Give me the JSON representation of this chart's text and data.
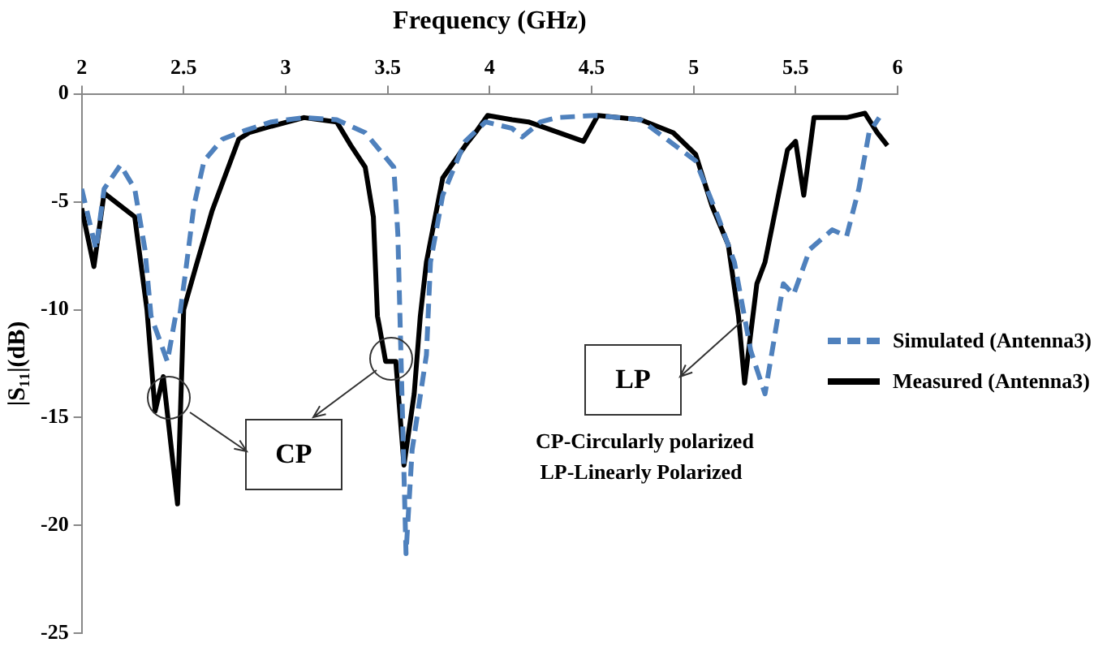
{
  "chart_data": {
    "type": "line",
    "xlabel": "Frequency (GHz)",
    "ylabel": "|S₁₁|(dB)",
    "xlim": [
      2,
      6
    ],
    "xticks": [
      2,
      2.5,
      3,
      3.5,
      4,
      4.5,
      5,
      5.5,
      6
    ],
    "ylim": [
      -25,
      0
    ],
    "yticks": [
      -25,
      -20,
      -15,
      -10,
      -5,
      0
    ],
    "grid": false,
    "legend": "right",
    "marker": "none",
    "annotations": [
      "CP",
      "LP",
      "CP-Circularly polarized",
      "LP-Linearly Polarized"
    ],
    "series": [
      {
        "name": "Simulated (Antenna3)",
        "color": "#4f81bd",
        "line_style": "dashed",
        "x": [
          2.0,
          2.07,
          2.11,
          2.19,
          2.26,
          2.31,
          2.34,
          2.42,
          2.46,
          2.48,
          2.51,
          2.55,
          2.6,
          2.69,
          2.8,
          2.93,
          3.09,
          3.25,
          3.39,
          3.53,
          3.55,
          3.57,
          3.59,
          3.62,
          3.69,
          3.71,
          3.77,
          3.88,
          3.98,
          4.11,
          4.16,
          4.25,
          4.33,
          4.52,
          4.74,
          5.01,
          5.12,
          5.2,
          5.28,
          5.35,
          5.44,
          5.49,
          5.57,
          5.68,
          5.75,
          5.81,
          5.86,
          5.91
        ],
        "values": [
          -4.4,
          -7.2,
          -4.4,
          -3.3,
          -4.4,
          -7.2,
          -10.3,
          -12.4,
          -10.3,
          -10.3,
          -8.2,
          -5.2,
          -3.1,
          -2.1,
          -1.7,
          -1.3,
          -1.1,
          -1.2,
          -1.8,
          -3.4,
          -6.5,
          -13.9,
          -21.3,
          -16.5,
          -12.1,
          -7.8,
          -4.7,
          -2.2,
          -1.3,
          -1.6,
          -2.0,
          -1.3,
          -1.1,
          -1.0,
          -1.2,
          -3.1,
          -5.7,
          -7.8,
          -11.9,
          -13.9,
          -8.8,
          -9.3,
          -7.2,
          -6.3,
          -6.6,
          -4.4,
          -1.8,
          -1.1
        ]
      },
      {
        "name": "Measured (Antenna3)",
        "color": "#000000",
        "line_style": "solid",
        "x": [
          2.0,
          2.06,
          2.11,
          2.26,
          2.32,
          2.36,
          2.4,
          2.47,
          2.5,
          2.56,
          2.64,
          2.77,
          2.82,
          2.93,
          3.09,
          3.25,
          3.32,
          3.39,
          3.43,
          3.45,
          3.46,
          3.49,
          3.54,
          3.58,
          3.63,
          3.66,
          3.69,
          3.77,
          3.88,
          3.93,
          3.99,
          4.11,
          4.19,
          4.46,
          4.53,
          4.74,
          4.9,
          5.01,
          5.09,
          5.17,
          5.22,
          5.25,
          5.31,
          5.35,
          5.46,
          5.5,
          5.54,
          5.59,
          5.75,
          5.84,
          5.9,
          5.95
        ],
        "values": [
          -5.3,
          -8.0,
          -4.6,
          -5.7,
          -10.0,
          -14.7,
          -13.1,
          -19.0,
          -10.0,
          -8.0,
          -5.4,
          -2.1,
          -1.8,
          -1.5,
          -1.1,
          -1.3,
          -2.4,
          -3.4,
          -5.7,
          -10.3,
          -10.8,
          -12.4,
          -12.4,
          -17.2,
          -13.9,
          -10.3,
          -7.8,
          -3.9,
          -2.4,
          -1.8,
          -1.0,
          -1.2,
          -1.3,
          -2.2,
          -1.0,
          -1.2,
          -1.8,
          -2.8,
          -5.2,
          -7.0,
          -10.3,
          -13.4,
          -8.8,
          -7.8,
          -2.6,
          -2.2,
          -4.7,
          -1.1,
          -1.1,
          -0.9,
          -1.8,
          -2.4
        ]
      }
    ]
  }
}
